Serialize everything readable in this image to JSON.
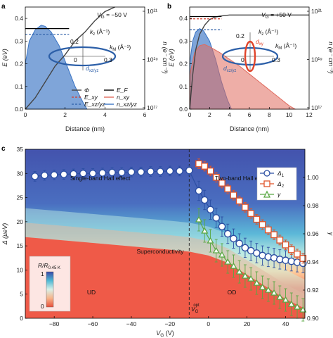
{
  "chart_data": [
    {
      "panel": "a",
      "type": "line",
      "gate_label": "V",
      "gate_sub": "G",
      "gate_value": " = −50 V",
      "xlabel": "Distance (nm)",
      "ylabel": "E (eV)",
      "y2label": "n (e⁻ cm⁻³)",
      "xlim": [
        0,
        6
      ],
      "ylim": [
        0,
        0.45
      ],
      "xticks": [
        "0",
        "2",
        "4",
        "6"
      ],
      "yticks": [
        "0.0",
        "0.1",
        "0.2",
        "0.3",
        "0.4"
      ],
      "y2ticks": [
        "10¹⁷",
        "10¹⁹",
        "10²¹"
      ],
      "legend": [
        "Φ",
        "E_F",
        "E_xy",
        "n_xy",
        "E_xz/yz",
        "n_xz/yz"
      ],
      "series": [
        {
          "name": "Φ",
          "color": "#444444",
          "x": [
            0,
            0.5,
            1,
            1.5,
            2,
            2.5,
            3,
            3.5,
            4,
            4.5
          ],
          "y": [
            0,
            0.05,
            0.12,
            0.19,
            0.24,
            0.3,
            0.34,
            0.39,
            0.43,
            0.46
          ]
        },
        {
          "name": "E_F",
          "color": "#000000",
          "x": [
            0,
            2.2
          ],
          "y": [
            0.355,
            0.355
          ]
        },
        {
          "name": "E_xz/yz",
          "color": "#2c5fa8",
          "x": [
            0,
            2.2
          ],
          "y": [
            0.33,
            0.33
          ]
        },
        {
          "name": "n_xz/yz",
          "color": "#3a74c4",
          "x": [
            0,
            0.2,
            0.5,
            0.8,
            1.0,
            1.3,
            1.7,
            2.1,
            2.5,
            2.9,
            3.1
          ],
          "y": [
            0.2,
            0.3,
            0.35,
            0.37,
            0.365,
            0.34,
            0.28,
            0.19,
            0.1,
            0.03,
            0
          ]
        }
      ],
      "inset": {
        "kz": "k",
        "kz_sub": "z",
        "kz_unit": " (Å⁻¹)",
        "km": "k",
        "km_sub": "M",
        "km_unit": " (Å⁻¹)",
        "v02": "0.2",
        "v0": "0",
        "v03": "0.3",
        "orbital": "d",
        "orbital_sub": "xz/yz"
      }
    },
    {
      "panel": "b",
      "type": "line",
      "gate_label": "V",
      "gate_sub": "G",
      "gate_value": " = +50 V",
      "xlabel": "Distance (nm)",
      "ylabel": "E (eV)",
      "y2label": "n (e⁻ cm⁻³)",
      "xlim": [
        0,
        12
      ],
      "ylim": [
        0,
        0.45
      ],
      "xticks": [
        "0",
        "2",
        "4",
        "6",
        "8",
        "10",
        "12"
      ],
      "yticks": [
        "0.0",
        "0.1",
        "0.2",
        "0.3",
        "0.4"
      ],
      "y2ticks": [
        "10¹⁷",
        "10¹⁹",
        "10²¹"
      ],
      "series": [
        {
          "name": "Φ",
          "color": "#444444",
          "x": [
            0,
            0.3,
            0.6,
            1,
            1.5,
            2,
            2.5,
            3,
            4,
            6,
            8,
            12
          ],
          "y": [
            0,
            0.15,
            0.26,
            0.33,
            0.37,
            0.395,
            0.405,
            0.41,
            0.415,
            0.415,
            0.415,
            0.415
          ]
        },
        {
          "name": "E_F",
          "color": "#000000",
          "x": [
            0,
            3.2
          ],
          "y": [
            0.408,
            0.408
          ]
        },
        {
          "name": "E_xy",
          "color": "#d23a2a",
          "x": [
            0,
            3.2
          ],
          "y": [
            0.398,
            0.398
          ]
        },
        {
          "name": "E_xz/yz",
          "color": "#2c5fa8",
          "x": [
            0,
            3.2
          ],
          "y": [
            0.35,
            0.35
          ]
        },
        {
          "name": "n_xz/yz",
          "color": "#3a74c4",
          "x": [
            0,
            0.3,
            0.6,
            1,
            1.4,
            2,
            2.6,
            3.2,
            3.8,
            4.2
          ],
          "y": [
            0.2,
            0.3,
            0.34,
            0.355,
            0.345,
            0.3,
            0.22,
            0.12,
            0.04,
            0
          ]
        },
        {
          "name": "n_xy",
          "color": "#e06b5e",
          "x": [
            0,
            0.5,
            1,
            1.5,
            2,
            3,
            4,
            5,
            6,
            7,
            8,
            9,
            10,
            10.6
          ],
          "y": [
            0.15,
            0.25,
            0.28,
            0.285,
            0.275,
            0.25,
            0.22,
            0.19,
            0.155,
            0.12,
            0.085,
            0.05,
            0.015,
            0
          ]
        }
      ],
      "inset": {
        "kz": "k",
        "kz_sub": "z",
        "kz_unit": " (Å⁻¹)",
        "km": "k",
        "km_sub": "M",
        "km_unit": " (Å⁻¹)",
        "v02": "0.2",
        "v0": "0",
        "v03": "0.3",
        "orbital_xy": "d",
        "orbital_xy_sub": "xy",
        "orbital": "d",
        "orbital_sub": "xz/yz"
      }
    },
    {
      "panel": "c",
      "type": "scatter",
      "xlabel": "V",
      "xlabel_sub": "G",
      "xlabel_unit": " (V)",
      "ylabel": "Δ (µeV)",
      "y2label": "γ",
      "xlim": [
        -95,
        50
      ],
      "ylim": [
        0,
        35
      ],
      "y2lim": [
        0.9,
        1.02
      ],
      "xticks": [
        -80,
        -60,
        -40,
        -20,
        0,
        20,
        40
      ],
      "yticks": [
        0,
        5,
        10,
        15,
        20,
        25,
        30,
        35
      ],
      "y2ticks": [
        "0.90",
        "0.92",
        "0.94",
        "0.96",
        "0.98",
        "1.00"
      ],
      "labels": {
        "left": "Single-band Hall effect",
        "right": "Two-band Hall effect",
        "sc": "Superconductivity",
        "ud": "UD",
        "od": "OD",
        "vopt": "V",
        "vopt_sub": "G",
        "vopt_sup": "opt",
        "cbar_title": "R/R",
        "cbar_sub": "0.45 K",
        "cbar_top": "1",
        "cbar_bottom": "0"
      },
      "legend": [
        "Δ",
        "Δ",
        "γ"
      ],
      "legend_subs": [
        "1",
        "2",
        ""
      ],
      "vopt_x": -10,
      "series": [
        {
          "name": "Δ1",
          "color": "#2c4fa3",
          "axis": "left",
          "x": [
            -90,
            -85,
            -80,
            -75,
            -70,
            -65,
            -60,
            -55,
            -50,
            -45,
            -40,
            -35,
            -30,
            -25,
            -20,
            -15,
            -10,
            -5,
            -2,
            1,
            4,
            7,
            10,
            13,
            16,
            19,
            22,
            25,
            28,
            31,
            34,
            37,
            40,
            43,
            46,
            49
          ],
          "y": [
            29.4,
            29.6,
            29.7,
            29.8,
            29.9,
            30,
            30,
            30.1,
            30.2,
            30.2,
            30.3,
            30.3,
            30.4,
            30.4,
            30.5,
            30.5,
            30.6,
            26.4,
            24.5,
            22.5,
            20.8,
            19,
            17.5,
            16.5,
            15.5,
            14.6,
            14,
            13.5,
            13,
            12.7,
            12.5,
            12.2,
            12,
            11.8,
            11.6,
            11.4
          ],
          "err": [
            1,
            1,
            1,
            1,
            1,
            1,
            1,
            1,
            1,
            1,
            1,
            1,
            1,
            1,
            1,
            1,
            1,
            2,
            2,
            2,
            2,
            2,
            2,
            2,
            2,
            2,
            2,
            2,
            2,
            2,
            2,
            2,
            2,
            2,
            2,
            2
          ]
        },
        {
          "name": "Δ2",
          "color": "#e0552b",
          "axis": "left",
          "x": [
            -5,
            -2,
            1,
            4,
            7,
            10,
            13,
            16,
            19,
            22,
            25,
            28,
            31,
            34,
            37,
            40,
            43,
            46,
            49
          ],
          "y": [
            32,
            31.5,
            30.5,
            29.2,
            28,
            26.8,
            25.5,
            24.3,
            23,
            21.7,
            20.5,
            19.4,
            18.3,
            17.3,
            16.2,
            15.2,
            14.2,
            13.3,
            12.4
          ],
          "err": [
            1,
            1,
            1,
            1,
            1,
            1,
            1,
            1,
            1,
            1,
            1,
            1,
            1,
            1,
            1,
            1,
            1,
            1,
            1
          ]
        },
        {
          "name": "γ",
          "color": "#5aa843",
          "axis": "right",
          "x": [
            -5,
            -2,
            1,
            4,
            7,
            10,
            13,
            16,
            19,
            22,
            25,
            28,
            31,
            34,
            37,
            40,
            43,
            46,
            49
          ],
          "y": [
            0.97,
            0.962,
            0.955,
            0.948,
            0.945,
            0.94,
            0.937,
            0.933,
            0.93,
            0.928,
            0.925,
            0.922,
            0.92,
            0.918,
            0.915,
            0.913,
            0.91,
            0.908,
            0.906
          ],
          "err": [
            0.008,
            0.008,
            0.008,
            0.008,
            0.008,
            0.008,
            0.008,
            0.008,
            0.008,
            0.008,
            0.008,
            0.008,
            0.008,
            0.008,
            0.008,
            0.008,
            0.008,
            0.008,
            0.008
          ]
        }
      ]
    }
  ]
}
